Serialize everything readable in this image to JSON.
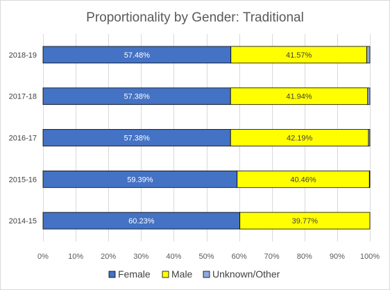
{
  "chart_data": {
    "type": "bar",
    "orientation": "horizontal",
    "stacked": true,
    "title": "Proportionality by Gender: Traditional",
    "categories": [
      "2018-19",
      "2017-18",
      "2016-17",
      "2015-16",
      "2014-15"
    ],
    "series": [
      {
        "name": "Female",
        "color": "#4472C4",
        "label_color": "#ffffff",
        "values": [
          57.48,
          57.38,
          57.38,
          59.39,
          60.23
        ],
        "labels": [
          "57.48%",
          "57.38%",
          "57.38%",
          "59.39%",
          "60.23%"
        ]
      },
      {
        "name": "Male",
        "color": "#FFFF00",
        "label_color": "#404040",
        "values": [
          41.57,
          41.94,
          42.19,
          40.46,
          39.77
        ],
        "labels": [
          "41.57%",
          "41.94%",
          "42.19%",
          "40.46%",
          "39.77%"
        ]
      },
      {
        "name": "Unknown/Other",
        "color": "#8FAADC",
        "label_color": "#404040",
        "values": [
          0.95,
          0.68,
          0.43,
          0.15,
          0.0
        ],
        "labels": [
          "",
          "",
          "",
          "",
          ""
        ]
      }
    ],
    "xlim": [
      0,
      100
    ],
    "xticks": [
      0,
      10,
      20,
      30,
      40,
      50,
      60,
      70,
      80,
      90,
      100
    ],
    "xtick_labels": [
      "0%",
      "10%",
      "20%",
      "30%",
      "40%",
      "50%",
      "60%",
      "70%",
      "80%",
      "90%",
      "100%"
    ],
    "grid": true,
    "legend": "bottom",
    "xlabel": "",
    "ylabel": ""
  }
}
